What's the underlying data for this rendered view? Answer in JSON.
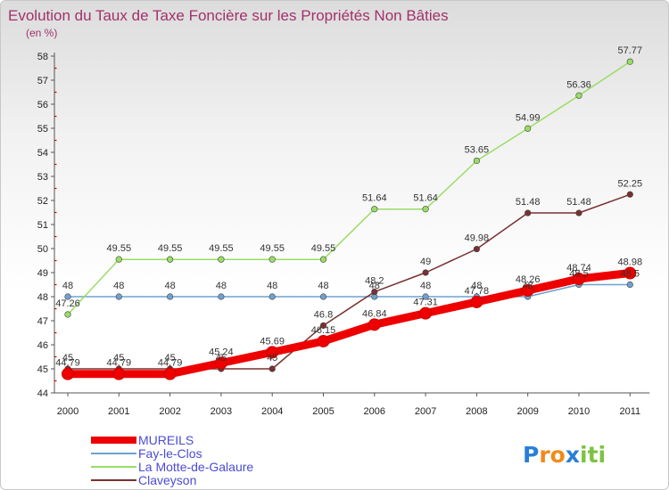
{
  "chart_data": {
    "type": "line",
    "title": "Evolution du Taux de Taxe Foncière sur les Propriétés Non Bâties",
    "unit_label": "(en %)",
    "xlabel": "",
    "ylabel": "",
    "categories": [
      "2000",
      "2001",
      "2002",
      "2003",
      "2004",
      "2005",
      "2006",
      "2007",
      "2008",
      "2009",
      "2010",
      "2011"
    ],
    "ylim": [
      44,
      58
    ],
    "yticks": [
      44,
      45,
      46,
      47,
      48,
      49,
      50,
      51,
      52,
      53,
      54,
      55,
      56,
      57,
      58
    ],
    "grid": false,
    "legend_position": "bottom-left",
    "series": [
      {
        "name": "MUREILS",
        "color": "#ee0000",
        "values": [
          44.79,
          44.79,
          44.79,
          45.24,
          45.69,
          46.15,
          46.84,
          47.31,
          47.78,
          48.26,
          48.74,
          48.98
        ],
        "labels": [
          "44.79",
          "44.79",
          "44.79",
          "45.24",
          "45.69",
          "46.15",
          "46.84",
          "47.31",
          "47.78",
          "48.26",
          "48.74",
          "48.98"
        ]
      },
      {
        "name": "Fay-le-Clos",
        "color": "#6fa0d0",
        "values": [
          48,
          48,
          48,
          48,
          48,
          48,
          48,
          48,
          48,
          48,
          48.5,
          48.5
        ],
        "labels": [
          "48",
          "48",
          "48",
          "48",
          "48",
          "48",
          "48",
          "48",
          "48",
          "48",
          "48.5",
          "48.5"
        ]
      },
      {
        "name": "La Motte-de-Galaure",
        "color": "#99dd66",
        "values": [
          47.26,
          49.55,
          49.55,
          49.55,
          49.55,
          49.55,
          51.64,
          51.64,
          53.65,
          54.99,
          56.36,
          57.77
        ],
        "labels": [
          "47.26",
          "49.55",
          "49.55",
          "49.55",
          "49.55",
          "49.55",
          "51.64",
          "51.64",
          "53.65",
          "54.99",
          "56.36",
          "57.77"
        ]
      },
      {
        "name": "Claveyson",
        "color": "#7a3030",
        "values": [
          45,
          45,
          45,
          45,
          45,
          46.8,
          48.2,
          49,
          49.98,
          51.48,
          51.48,
          52.25
        ],
        "labels": [
          "45",
          "45",
          "45",
          "45",
          "45",
          "46.8",
          "48.2",
          "49",
          "49.98",
          "51.48",
          "51.48",
          "52.25"
        ]
      }
    ]
  },
  "logo": {
    "letters": [
      "P",
      "r",
      "o",
      "x",
      "i",
      "t",
      "i"
    ],
    "colors": [
      "#2a7fd4",
      "#f08a1c",
      "#f08a1c",
      "#2a7fd4",
      "#7cc242",
      "#7cc242",
      "#7cc242"
    ]
  }
}
